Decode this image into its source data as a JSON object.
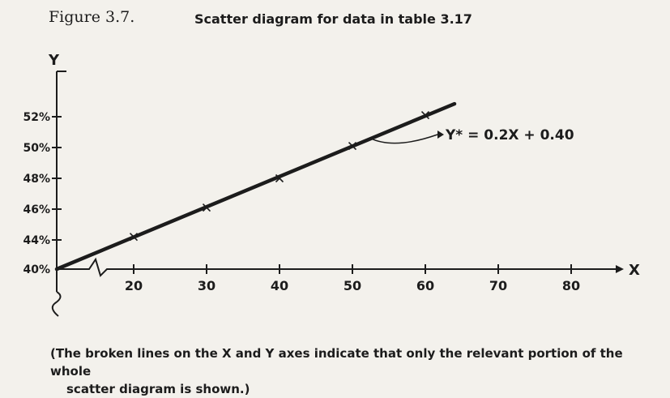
{
  "figure_label": "Figure 3.7.",
  "figure_title": "Scatter diagram for data in table 3.17",
  "caption": {
    "line1": "(The broken lines on the X and Y axes indicate that only the relevant portion of the whole",
    "line2": "scatter diagram is shown.)"
  },
  "chart_data": {
    "type": "scatter",
    "title": "Scatter diagram for data in table 3.17",
    "xlabel": "X",
    "ylabel": "Y",
    "x_ticks": [
      "20",
      "30",
      "40",
      "50",
      "60",
      "70",
      "80"
    ],
    "y_ticks": [
      "40%",
      "44%",
      "46%",
      "48%",
      "50%",
      "52%"
    ],
    "xlim": [
      10,
      85
    ],
    "ylim": [
      40,
      53
    ],
    "axis_breaks": true,
    "series": [
      {
        "points": [
          {
            "x": 20,
            "y": 44.2
          },
          {
            "x": 30,
            "y": 46.1
          },
          {
            "x": 40,
            "y": 48.0
          },
          {
            "x": 50,
            "y": 50.1
          },
          {
            "x": 60,
            "y": 52.1
          }
        ]
      }
    ],
    "fit_line": {
      "label": "Y* = 0.2X + 0.40",
      "intercept": 40,
      "slope": 0.2,
      "x_range": [
        10,
        64
      ]
    },
    "grid": false
  }
}
